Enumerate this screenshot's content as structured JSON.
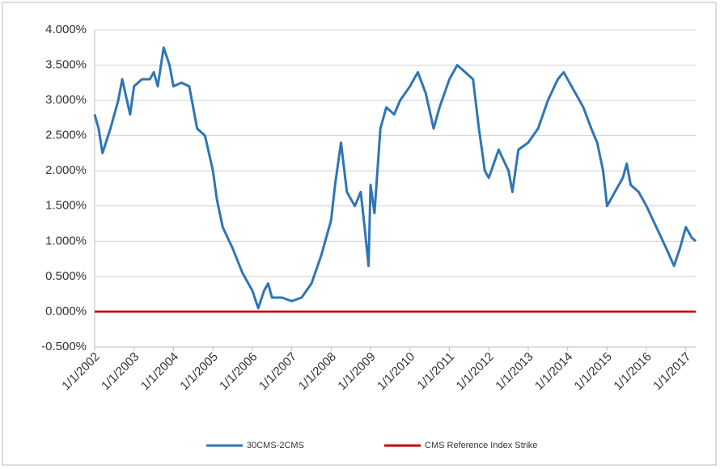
{
  "chart_data": {
    "type": "line",
    "series": [
      {
        "name": "30CMS-2CMS",
        "color": "#2e75b6",
        "x": [
          2002.0,
          2002.1,
          2002.2,
          2002.4,
          2002.6,
          2002.7,
          2002.9,
          2003.0,
          2003.2,
          2003.4,
          2003.5,
          2003.6,
          2003.75,
          2003.9,
          2004.0,
          2004.2,
          2004.4,
          2004.5,
          2004.6,
          2004.8,
          2005.0,
          2005.1,
          2005.25,
          2005.5,
          2005.75,
          2006.0,
          2006.15,
          2006.3,
          2006.4,
          2006.5,
          2006.75,
          2007.0,
          2007.25,
          2007.5,
          2007.75,
          2008.0,
          2008.1,
          2008.25,
          2008.4,
          2008.6,
          2008.75,
          2008.85,
          2008.95,
          2009.0,
          2009.1,
          2009.25,
          2009.4,
          2009.6,
          2009.75,
          2010.0,
          2010.2,
          2010.4,
          2010.6,
          2010.75,
          2011.0,
          2011.2,
          2011.4,
          2011.6,
          2011.75,
          2011.9,
          2012.0,
          2012.25,
          2012.5,
          2012.6,
          2012.75,
          2013.0,
          2013.25,
          2013.5,
          2013.75,
          2013.9,
          2014.1,
          2014.4,
          2014.6,
          2014.75,
          2014.9,
          2015.0,
          2015.2,
          2015.4,
          2015.5,
          2015.6,
          2015.8,
          2016.0,
          2016.25,
          2016.5,
          2016.7,
          2016.85,
          2017.0,
          2017.15,
          2017.25
        ],
        "values": [
          2.8,
          2.6,
          2.25,
          2.6,
          3.0,
          3.3,
          2.8,
          3.2,
          3.3,
          3.3,
          3.4,
          3.2,
          3.75,
          3.5,
          3.2,
          3.25,
          3.2,
          2.9,
          2.6,
          2.5,
          2.0,
          1.6,
          1.2,
          0.9,
          0.55,
          0.3,
          0.05,
          0.3,
          0.4,
          0.2,
          0.2,
          0.15,
          0.2,
          0.4,
          0.8,
          1.3,
          1.8,
          2.4,
          1.7,
          1.5,
          1.7,
          1.2,
          0.65,
          1.8,
          1.4,
          2.6,
          2.9,
          2.8,
          3.0,
          3.2,
          3.4,
          3.1,
          2.6,
          2.9,
          3.3,
          3.5,
          3.4,
          3.3,
          2.6,
          2.0,
          1.9,
          2.3,
          2.0,
          1.7,
          2.3,
          2.4,
          2.6,
          3.0,
          3.3,
          3.4,
          3.2,
          2.9,
          2.6,
          2.4,
          2.0,
          1.5,
          1.7,
          1.9,
          2.1,
          1.8,
          1.7,
          1.5,
          1.2,
          0.9,
          0.65,
          0.9,
          1.2,
          1.05,
          1.0
        ]
      },
      {
        "name": "CMS Reference Index Strike",
        "color": "#c00000",
        "x": [
          2002.0,
          2017.25
        ],
        "values": [
          0,
          0
        ]
      }
    ],
    "xlim": [
      2002,
      2017.25
    ],
    "xticks": [
      {
        "value": 2002,
        "label": "1/1/2002"
      },
      {
        "value": 2003,
        "label": "1/1/2003"
      },
      {
        "value": 2004,
        "label": "1/1/2004"
      },
      {
        "value": 2005,
        "label": "1/1/2005"
      },
      {
        "value": 2006,
        "label": "1/1/2006"
      },
      {
        "value": 2007,
        "label": "1/1/2007"
      },
      {
        "value": 2008,
        "label": "1/1/2008"
      },
      {
        "value": 2009,
        "label": "1/1/2009"
      },
      {
        "value": 2010,
        "label": "1/1/2010"
      },
      {
        "value": 2011,
        "label": "1/1/2011"
      },
      {
        "value": 2012,
        "label": "1/1/2012"
      },
      {
        "value": 2013,
        "label": "1/1/2013"
      },
      {
        "value": 2014,
        "label": "1/1/2014"
      },
      {
        "value": 2015,
        "label": "1/1/2015"
      },
      {
        "value": 2016,
        "label": "1/1/2016"
      },
      {
        "value": 2017,
        "label": "1/1/2017"
      }
    ],
    "ylim": [
      -0.5,
      4
    ],
    "yticks": [
      {
        "value": -0.5,
        "label": "-0.500%"
      },
      {
        "value": 0,
        "label": "0.000%"
      },
      {
        "value": 0.5,
        "label": "0.500%"
      },
      {
        "value": 1,
        "label": "1.000%"
      },
      {
        "value": 1.5,
        "label": "1.500%"
      },
      {
        "value": 2,
        "label": "2.000%"
      },
      {
        "value": 2.5,
        "label": "2.500%"
      },
      {
        "value": 3,
        "label": "3.000%"
      },
      {
        "value": 3.5,
        "label": "3.500%"
      },
      {
        "value": 4,
        "label": "4.000%"
      }
    ],
    "grid": true,
    "legend": "bottom"
  }
}
